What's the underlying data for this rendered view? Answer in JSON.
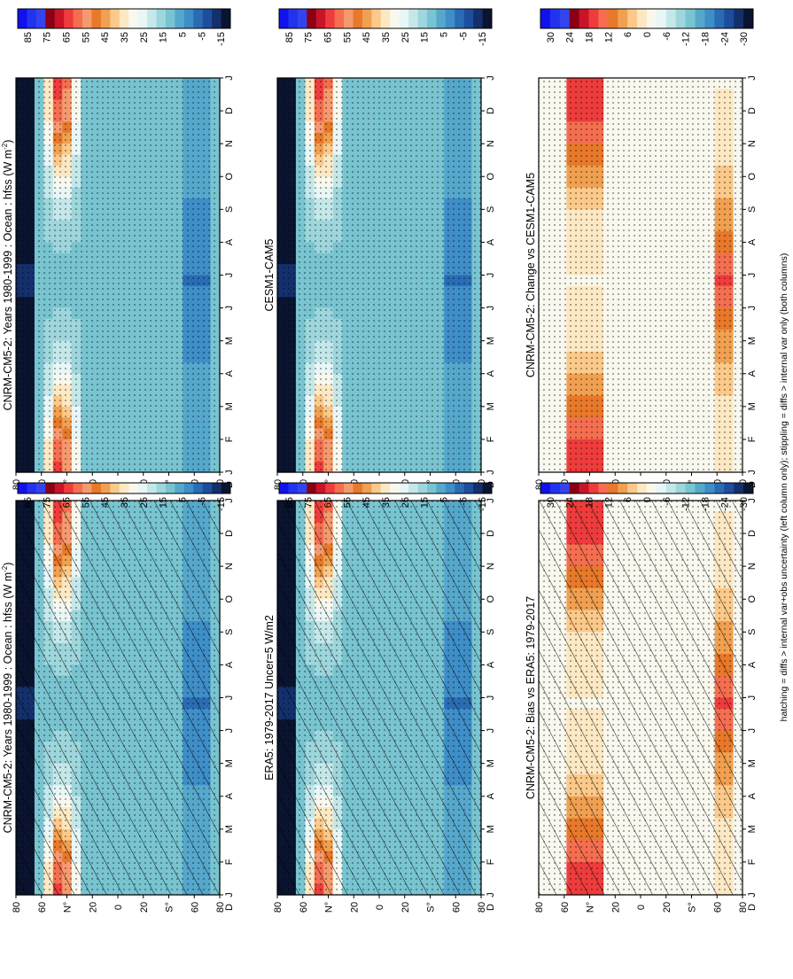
{
  "figure": {
    "footnote": "hatching = diffs > internal var+obs uncertainty (left column only); stippling = diffs > internal var only (both columns)"
  },
  "colorbars": {
    "abs": {
      "labels": [
        "85",
        "75",
        "65",
        "55",
        "45",
        "35",
        "25",
        "15",
        "5",
        "-5",
        "-15"
      ],
      "colors": [
        "#1111ee",
        "#2233ee",
        "#3344ee",
        "#8b0014",
        "#c81428",
        "#ee3c3c",
        "#f56e50",
        "#f59a6e",
        "#e8782a",
        "#f0a050",
        "#fbc98a",
        "#fde8c4",
        "#f8f8ee",
        "#e8f6f6",
        "#c4e8ea",
        "#9dd6dc",
        "#78c4d0",
        "#55a8cc",
        "#3e8ec8",
        "#2a6cb4",
        "#1d4e9e",
        "#14306c",
        "#0a1430"
      ]
    },
    "diff": {
      "labels": [
        "30",
        "24",
        "18",
        "12",
        "6",
        "0",
        "-6",
        "-12",
        "-18",
        "-24",
        "-30"
      ],
      "colors": [
        "#1111ee",
        "#2233ee",
        "#3344ee",
        "#8b0014",
        "#c81428",
        "#ee3c3c",
        "#f56e50",
        "#e8782a",
        "#f0a050",
        "#fbc98a",
        "#fde8c4",
        "#f8f8ee",
        "#e8f6f6",
        "#c4e8ea",
        "#9dd6dc",
        "#78c4d0",
        "#55a8cc",
        "#3e8ec8",
        "#2a6cb4",
        "#1d4e9e",
        "#14306c",
        "#0a1430"
      ]
    }
  },
  "chart_data": [
    {
      "type": "heatmap",
      "id": "model_hatched",
      "title": "CNRM-CM5-2: Years 1980-1999 : Ocean : hfss (W m",
      "title_sup": "-2",
      "title_end": ")",
      "x": [
        "J",
        "F",
        "M",
        "A",
        "M",
        "J",
        "J",
        "A",
        "S",
        "O",
        "N",
        "D",
        "J"
      ],
      "x_extra": "D",
      "y_ticks": [
        "80",
        "60",
        "40",
        "20",
        "0",
        "20",
        "40",
        "60",
        "80"
      ],
      "y_ticks_display": [
        "80",
        "60",
        "N°",
        "20",
        "0",
        "20",
        "S°",
        "60",
        "80"
      ],
      "colorbar": "abs",
      "hatching": true,
      "stippling": true,
      "range_label": "hfss W m-2, -15 to 85"
    },
    {
      "type": "heatmap",
      "id": "obs",
      "title": "ERA5: 1979-2017 Uncer=5 W/m2",
      "x": [
        "J",
        "F",
        "M",
        "A",
        "M",
        "J",
        "J",
        "A",
        "S",
        "O",
        "N",
        "D",
        "J"
      ],
      "x_extra": "D",
      "y_ticks_display": [
        "80",
        "60",
        "N°",
        "20",
        "0",
        "20",
        "S°",
        "60",
        "80"
      ],
      "colorbar": "abs",
      "hatching": true,
      "stippling": true
    },
    {
      "type": "heatmap",
      "id": "bias",
      "title": "CNRM-CM5-2: Bias vs ERA5: 1979-2017",
      "x": [
        "J",
        "F",
        "M",
        "A",
        "M",
        "J",
        "J",
        "A",
        "S",
        "O",
        "N",
        "D",
        "J"
      ],
      "x_extra": "D",
      "y_ticks_display": [
        "80",
        "60",
        "N°",
        "20",
        "0",
        "20",
        "S°",
        "60",
        "80"
      ],
      "colorbar": "diff",
      "hatching": true,
      "stippling": true
    },
    {
      "type": "heatmap",
      "id": "model_right",
      "title": "CNRM-CM5-2: Years 1980-1999 : Ocean : hfss (W m",
      "title_sup": "-2",
      "title_end": ")",
      "x": [
        "J",
        "F",
        "M",
        "A",
        "M",
        "J",
        "J",
        "A",
        "S",
        "O",
        "N",
        "D",
        "J"
      ],
      "x_extra": "D",
      "y_ticks_display": [
        "80",
        "60",
        "N°",
        "20",
        "0",
        "20",
        "S°",
        "60",
        "80"
      ],
      "colorbar": "abs",
      "hatching": false,
      "stippling": true
    },
    {
      "type": "heatmap",
      "id": "ref_model",
      "title": "CESM1-CAM5",
      "x": [
        "J",
        "F",
        "M",
        "A",
        "M",
        "J",
        "J",
        "A",
        "S",
        "O",
        "N",
        "D",
        "J"
      ],
      "x_extra": "D",
      "y_ticks_display": [
        "80",
        "60",
        "N°",
        "20",
        "0",
        "20",
        "S°",
        "60",
        "80"
      ],
      "colorbar": "abs",
      "hatching": false,
      "stippling": true
    },
    {
      "type": "heatmap",
      "id": "change",
      "title": "CNRM-CM5-2: Change vs CESM1-CAM5",
      "x": [
        "J",
        "F",
        "M",
        "A",
        "M",
        "J",
        "J",
        "A",
        "S",
        "O",
        "N",
        "D",
        "J"
      ],
      "x_extra": "D",
      "y_ticks_display": [
        "80",
        "60",
        "N°",
        "20",
        "0",
        "20",
        "S°",
        "60",
        "80"
      ],
      "colorbar": "diff",
      "hatching": false,
      "stippling": true
    }
  ]
}
